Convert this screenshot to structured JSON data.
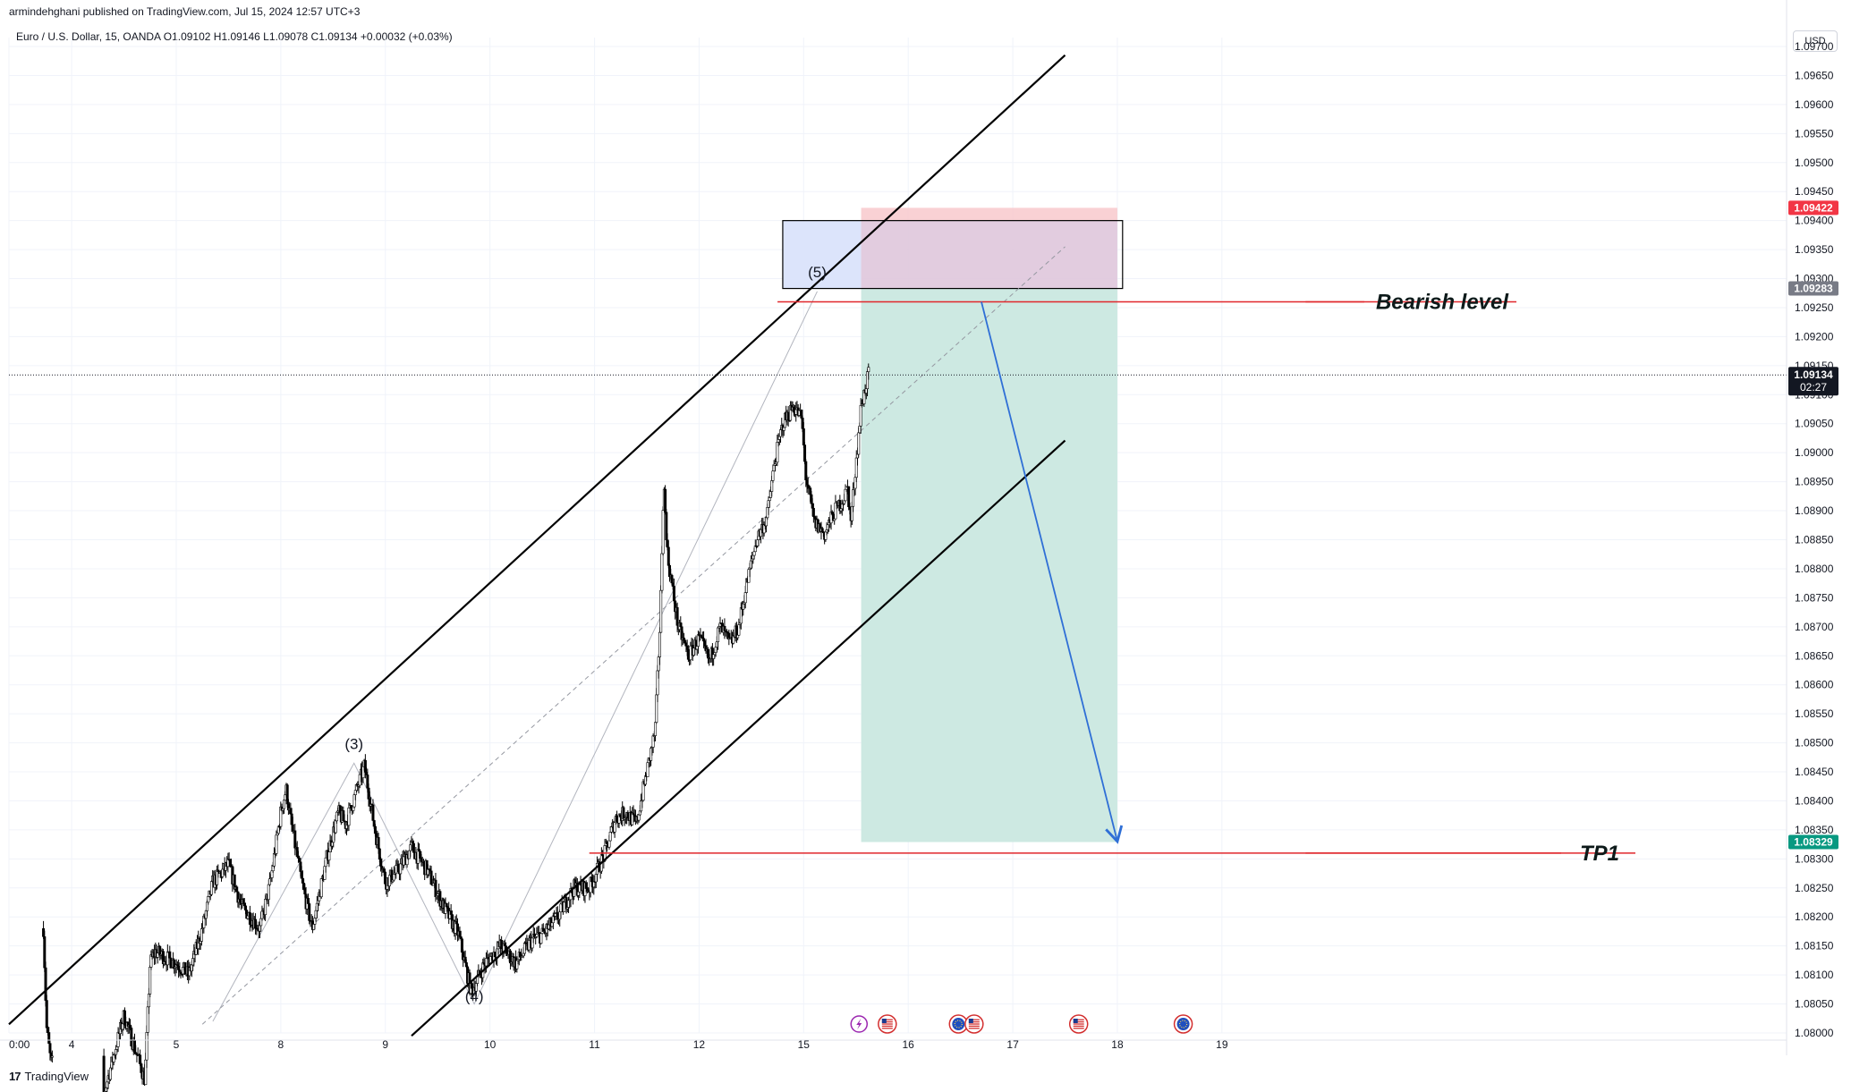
{
  "header": {
    "publisher": "armindehghani published on TradingView.com, Jul 15, 2024 12:57 UTC+3",
    "symbol_line": "Euro / U.S. Dollar, 15, OANDA  O1.09102  H1.09146  L1.09078  C1.09134  +0.00032 (+0.03%)",
    "currency": "USD"
  },
  "footer": {
    "brand": "TradingView",
    "brand_mark": "17"
  },
  "colors": {
    "channel": "#000000",
    "candle": "#000000",
    "stop_zone": "#f8c9cc",
    "target_zone": "#cde9e2",
    "supply_box": "#dce4fb",
    "level_line": "#e0262b",
    "arrow": "#2f6fd6",
    "last_price_tag": "#131722",
    "stop_tag": "#f23645",
    "target_tag": "#089981",
    "box_tag": "#787b86"
  },
  "chart_data": {
    "type": "candlestick",
    "instrument": "Euro / U.S. Dollar",
    "timeframe": "15",
    "broker": "OANDA",
    "ohlc": {
      "open": 1.09102,
      "high": 1.09146,
      "low": 1.09078,
      "close": 1.09134,
      "change": 0.00032,
      "change_pct": 0.03
    },
    "ylim": [
      1.08,
      1.097
    ],
    "xlim": [
      3.4,
      20.4
    ],
    "y_ticks": [
      "1.08000",
      "1.08050",
      "1.08100",
      "1.08150",
      "1.08200",
      "1.08250",
      "1.08300",
      "1.08350",
      "1.08400",
      "1.08450",
      "1.08500",
      "1.08550",
      "1.08600",
      "1.08650",
      "1.08700",
      "1.08750",
      "1.08800",
      "1.08850",
      "1.08900",
      "1.08950",
      "1.09000",
      "1.09050",
      "1.09100",
      "1.09150",
      "1.09200",
      "1.09250",
      "1.09300",
      "1.09350",
      "1.09400",
      "1.09450",
      "1.09500",
      "1.09550",
      "1.09600",
      "1.09650",
      "1.09700"
    ],
    "x_ticks": [
      {
        "label": "0:00",
        "x": 3.4
      },
      {
        "label": "4",
        "x": 4
      },
      {
        "label": "5",
        "x": 5
      },
      {
        "label": "8",
        "x": 6
      },
      {
        "label": "9",
        "x": 7
      },
      {
        "label": "10",
        "x": 8
      },
      {
        "label": "11",
        "x": 9
      },
      {
        "label": "12",
        "x": 10
      },
      {
        "label": "15",
        "x": 11
      },
      {
        "label": "16",
        "x": 12
      },
      {
        "label": "17",
        "x": 13
      },
      {
        "label": "18",
        "x": 14
      },
      {
        "label": "19",
        "x": 15
      }
    ],
    "price_path": [
      [
        3.73,
        1.0818
      ],
      [
        3.76,
        1.0801
      ],
      [
        3.8,
        1.0795
      ],
      [
        4.3,
        1.0789
      ],
      [
        4.5,
        1.0803
      ],
      [
        4.7,
        1.0792
      ],
      [
        4.75,
        1.0812
      ],
      [
        4.8,
        1.0814
      ],
      [
        5.0,
        1.0812
      ],
      [
        5.12,
        1.081
      ],
      [
        5.25,
        1.0818
      ],
      [
        5.35,
        1.0826
      ],
      [
        5.5,
        1.0829
      ],
      [
        5.62,
        1.0822
      ],
      [
        5.8,
        1.0818
      ],
      [
        5.9,
        1.0826
      ],
      [
        6.0,
        1.0838
      ],
      [
        6.05,
        1.0842
      ],
      [
        6.1,
        1.0836
      ],
      [
        6.2,
        1.0826
      ],
      [
        6.3,
        1.0818
      ],
      [
        6.45,
        1.0831
      ],
      [
        6.55,
        1.0838
      ],
      [
        6.62,
        1.0836
      ],
      [
        6.8,
        1.0846
      ],
      [
        6.9,
        1.0835
      ],
      [
        7.0,
        1.0826
      ],
      [
        7.12,
        1.0828
      ],
      [
        7.25,
        1.0832
      ],
      [
        7.4,
        1.0828
      ],
      [
        7.55,
        1.0822
      ],
      [
        7.7,
        1.0817
      ],
      [
        7.82,
        1.0807
      ],
      [
        7.95,
        1.0812
      ],
      [
        8.1,
        1.0815
      ],
      [
        8.25,
        1.0812
      ],
      [
        8.4,
        1.0816
      ],
      [
        8.5,
        1.0817
      ],
      [
        8.65,
        1.082
      ],
      [
        8.8,
        1.0825
      ],
      [
        8.95,
        1.0825
      ],
      [
        9.0,
        1.0827
      ],
      [
        9.1,
        1.0831
      ],
      [
        9.2,
        1.0837
      ],
      [
        9.3,
        1.0838
      ],
      [
        9.4,
        1.0836
      ],
      [
        9.5,
        1.0845
      ],
      [
        9.58,
        1.0852
      ],
      [
        9.63,
        1.0872
      ],
      [
        9.66,
        1.0895
      ],
      [
        9.7,
        1.0882
      ],
      [
        9.8,
        1.087
      ],
      [
        9.9,
        1.0865
      ],
      [
        10.0,
        1.0868
      ],
      [
        10.1,
        1.0864
      ],
      [
        10.2,
        1.087
      ],
      [
        10.3,
        1.0867
      ],
      [
        10.38,
        1.087
      ],
      [
        10.45,
        1.0877
      ],
      [
        10.55,
        1.0885
      ],
      [
        10.65,
        1.0889
      ],
      [
        10.72,
        1.0898
      ],
      [
        10.8,
        1.0905
      ],
      [
        10.9,
        1.0908
      ],
      [
        10.98,
        1.0906
      ],
      [
        11.02,
        1.0896
      ],
      [
        11.1,
        1.0888
      ],
      [
        11.2,
        1.0886
      ],
      [
        11.3,
        1.089
      ],
      [
        11.38,
        1.0892
      ],
      [
        11.42,
        1.0894
      ],
      [
        11.45,
        1.0888
      ],
      [
        11.5,
        1.0898
      ],
      [
        11.55,
        1.0908
      ],
      [
        11.6,
        1.0912
      ],
      [
        11.62,
        1.09134
      ]
    ],
    "channel_lines": [
      {
        "name": "upper",
        "from": [
          3.4,
          1.08015
        ],
        "to": [
          13.5,
          1.09685
        ]
      },
      {
        "name": "lower",
        "from": [
          7.25,
          1.07995
        ],
        "to": [
          13.5,
          1.09021
        ]
      }
    ],
    "midline": {
      "from": [
        5.25,
        1.08015
      ],
      "to": [
        13.5,
        1.09355
      ]
    },
    "wave_path": [
      [
        5.35,
        1.0802
      ],
      [
        6.7,
        1.08465
      ],
      [
        7.85,
        1.0805
      ],
      [
        11.13,
        1.09278
      ]
    ],
    "wave_labels": [
      {
        "label": "(3)",
        "x": 6.7,
        "y": 1.08465
      },
      {
        "label": "(4)",
        "x": 7.85,
        "y": 1.0803
      },
      {
        "label": "(5)",
        "x": 11.13,
        "y": 1.09278
      }
    ],
    "supply_box": {
      "x0": 10.8,
      "x1": 14.05,
      "top": 1.094,
      "bottom": 1.09283
    },
    "position": {
      "type": "short",
      "x0": 11.55,
      "x1": 14.0,
      "entry": 1.09283,
      "stop": 1.09422,
      "target": 1.08329
    },
    "levels": [
      {
        "name": "Bearish level",
        "price": 1.0926,
        "x0": 10.75,
        "x1": 15.8
      },
      {
        "name": "TP1",
        "price": 1.0831,
        "x0": 8.95,
        "x1": 15.8
      }
    ],
    "current_price": {
      "price": 1.09134,
      "countdown": "02:27"
    },
    "price_tags": [
      {
        "value": "1.09422",
        "price": 1.09422,
        "kind": "stop"
      },
      {
        "value": "1.09283",
        "price": 1.09283,
        "kind": "box"
      },
      {
        "value": "1.08329",
        "price": 1.08329,
        "kind": "target"
      }
    ],
    "arrow": {
      "from": [
        12.7,
        1.0926
      ],
      "to": [
        14.0,
        1.0833
      ]
    },
    "event_icons": [
      {
        "x": 11.53,
        "kind": "bolt"
      },
      {
        "x": 11.8,
        "kind": "flag-us"
      },
      {
        "x": 12.48,
        "kind": "flag-eu"
      },
      {
        "x": 12.63,
        "kind": "flag-us"
      },
      {
        "x": 13.63,
        "kind": "flag-us"
      },
      {
        "x": 14.63,
        "kind": "flag-eu"
      }
    ],
    "annotations": [
      "Bearish level",
      "TP1"
    ]
  }
}
